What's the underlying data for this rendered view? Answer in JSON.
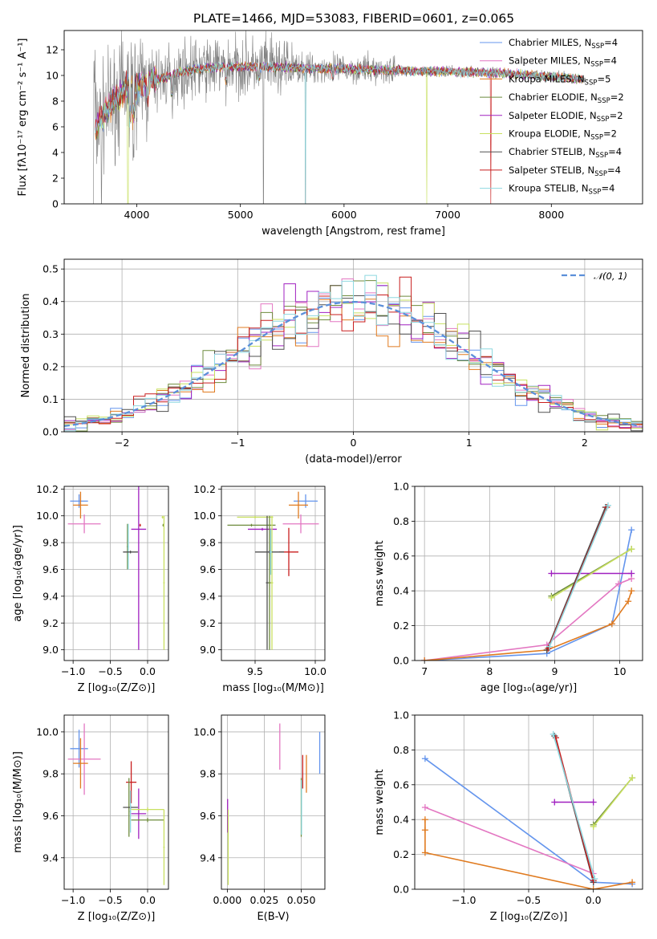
{
  "colors": {
    "chabrier_miles": "#6495ed",
    "salpeter_miles": "#e377c2",
    "kroupa_miles": "#e07b20",
    "chabrier_elodie": "#6e8b3d",
    "salpeter_elodie": "#a020c0",
    "kroupa_elodie": "#c8e060",
    "chabrier_stelib": "#505050",
    "salpeter_stelib": "#c81e1e",
    "kroupa_stelib": "#8ed8e0",
    "data": "#808080",
    "normal_curve": "#5b8fd9",
    "grid": "#b0b0b0"
  },
  "chart_data": [
    {
      "id": "spectrum",
      "type": "line",
      "title": "PLATE=1466, MJD=53083, FIBERID=0601, z=0.065",
      "xlabel": "wavelength [Angstrom, rest frame]",
      "ylabel": "Flux [fλ10⁻¹⁷ erg cm⁻² s⁻¹ A⁻¹]",
      "xlim": [
        3300,
        8880
      ],
      "ylim": [
        0,
        13.5
      ],
      "xticks": [
        4000,
        5000,
        6000,
        7000,
        8000
      ],
      "yticks": [
        0,
        2,
        4,
        6,
        8,
        10,
        12
      ],
      "grid": false,
      "legend_position": "top-right",
      "series": [
        {
          "name": "Chabrier MILES, N",
          "sub": "SSP",
          "n": "=4",
          "color": "chabrier_miles"
        },
        {
          "name": "Salpeter MILES, N",
          "sub": "SSP",
          "n": "=4",
          "color": "salpeter_miles"
        },
        {
          "name": "Kroupa MILES, N",
          "sub": "SSP",
          "n": "=5",
          "color": "kroupa_miles"
        },
        {
          "name": "Chabrier ELODIE, N",
          "sub": "SSP",
          "n": "=2",
          "color": "chabrier_elodie"
        },
        {
          "name": "Salpeter ELODIE, N",
          "sub": "SSP",
          "n": "=2",
          "color": "salpeter_elodie"
        },
        {
          "name": "Kroupa ELODIE, N",
          "sub": "SSP",
          "n": "=2",
          "color": "kroupa_elodie"
        },
        {
          "name": "Chabrier STELIB, N",
          "sub": "SSP",
          "n": "=4",
          "color": "chabrier_stelib"
        },
        {
          "name": "Salpeter STELIB, N",
          "sub": "SSP",
          "n": "=4",
          "color": "salpeter_stelib"
        },
        {
          "name": "Kroupa STELIB, N",
          "sub": "SSP",
          "n": "=4",
          "color": "kroupa_stelib"
        }
      ],
      "continuum": [
        [
          3600,
          5.8
        ],
        [
          3700,
          7.2
        ],
        [
          3800,
          8.2
        ],
        [
          3900,
          9.0
        ],
        [
          4000,
          9.1
        ],
        [
          4100,
          9.6
        ],
        [
          4200,
          9.7
        ],
        [
          4300,
          9.9
        ],
        [
          4400,
          10.2
        ],
        [
          4500,
          10.4
        ],
        [
          4700,
          10.6
        ],
        [
          5000,
          10.7
        ],
        [
          5500,
          10.6
        ],
        [
          6000,
          10.5
        ],
        [
          6500,
          10.4
        ],
        [
          7000,
          10.3
        ],
        [
          7500,
          10.2
        ],
        [
          8000,
          9.9
        ],
        [
          8300,
          9.7
        ]
      ]
    },
    {
      "id": "residuals",
      "type": "histogram",
      "xlabel": "(data-model)/error",
      "ylabel": "Normed distribution",
      "xlim": [
        -2.5,
        2.5
      ],
      "ylim": [
        0,
        0.53
      ],
      "xticks": [
        -2,
        -1,
        0,
        1,
        2
      ],
      "yticks": [
        0.0,
        0.1,
        0.2,
        0.3,
        0.4,
        0.5
      ],
      "grid": true,
      "legend_position": "top-right",
      "legend": "𝒩(0, 1)",
      "bin_width": 0.1
    },
    {
      "id": "age_vs_Z",
      "type": "errorbar",
      "xlabel": "Z [log₁₀(Z/Z⊙)]",
      "ylabel": "age  [log₁₀(age/yr)]",
      "xlim": [
        -1.12,
        0.28
      ],
      "ylim": [
        8.92,
        10.22
      ],
      "xticks": [
        -1.0,
        -0.5,
        0.0
      ],
      "yticks": [
        9.0,
        9.2,
        9.4,
        9.6,
        9.8,
        10.0,
        10.2
      ],
      "grid": true,
      "points": [
        {
          "s": "chabrier_miles",
          "x": -0.92,
          "xe": 0.12,
          "y": 10.11,
          "ye": 0.05
        },
        {
          "s": "kroupa_miles",
          "x": -0.9,
          "xe": 0.1,
          "y": 10.08,
          "ye": 0.1
        },
        {
          "s": "salpeter_miles",
          "x": -0.85,
          "xe": 0.22,
          "y": 9.94,
          "ye": 0.07
        },
        {
          "s": "chabrier_elodie",
          "x": -0.27,
          "xe": 0.01,
          "y": 9.77,
          "ye": 0.17
        },
        {
          "s": "kroupa_stelib",
          "x": -0.26,
          "xe": 0.01,
          "y": 9.77,
          "ye": 0.17
        },
        {
          "s": "chabrier_stelib",
          "x": -0.23,
          "xe": 0.1,
          "y": 9.73,
          "ye": 0.01
        },
        {
          "s": "salpeter_elodie",
          "x": -0.12,
          "xe": 0.1,
          "y": 9.9,
          "ye": 0.9
        },
        {
          "s": "salpeter_stelib",
          "x": -0.1,
          "xe": 0.01,
          "y": 9.93,
          "ye": 0.01
        },
        {
          "s": "kroupa_elodie",
          "x": 0.2,
          "xe": 0.01,
          "y": 9.99,
          "ye": 0.01
        },
        {
          "s": "chabrier_elodie",
          "x": 0.21,
          "xe": 0.01,
          "y": 9.93,
          "ye": 0.01
        },
        {
          "s": "kroupa_elodie",
          "x": 0.22,
          "xe": 0.01,
          "y": 9.5,
          "ye": 0.5
        }
      ]
    },
    {
      "id": "age_vs_mass",
      "type": "errorbar",
      "xlabel": "mass [log₁₀(M/M⊙)]",
      "xlim": [
        9.22,
        10.08
      ],
      "ylim": [
        8.92,
        10.22
      ],
      "xticks": [
        9.5,
        10.0
      ],
      "yticks": [
        9.0,
        9.2,
        9.4,
        9.6,
        9.8,
        10.0,
        10.2
      ],
      "grid": true,
      "points": [
        {
          "s": "chabrier_miles",
          "x": 9.92,
          "xe": 0.1,
          "y": 10.11,
          "ye": 0.05
        },
        {
          "s": "kroupa_miles",
          "x": 9.86,
          "xe": 0.08,
          "y": 10.08,
          "ye": 0.1
        },
        {
          "s": "salpeter_miles",
          "x": 9.88,
          "xe": 0.15,
          "y": 9.94,
          "ye": 0.07
        },
        {
          "s": "kroupa_elodie",
          "x": 9.5,
          "xe": 0.15,
          "y": 9.99,
          "ye": 0.01
        },
        {
          "s": "chabrier_elodie",
          "x": 9.47,
          "xe": 0.2,
          "y": 9.93,
          "ye": 0.01
        },
        {
          "s": "salpeter_elodie",
          "x": 9.56,
          "xe": 0.12,
          "y": 9.9,
          "ye": 0.01
        },
        {
          "s": "salpeter_stelib",
          "x": 9.78,
          "xe": 0.08,
          "y": 9.73,
          "ye": 0.18
        },
        {
          "s": "chabrier_stelib",
          "x": 9.6,
          "xe": 0.01,
          "y": 9.5,
          "ye": 0.5
        },
        {
          "s": "chabrier_elodie",
          "x": 9.62,
          "xe": 0.01,
          "y": 9.5,
          "ye": 0.5
        },
        {
          "s": "kroupa_elodie",
          "x": 9.64,
          "xe": 0.01,
          "y": 9.5,
          "ye": 0.5
        },
        {
          "s": "chabrier_stelib",
          "x": 9.62,
          "xe": 0.12,
          "y": 9.73,
          "ye": 0.01
        },
        {
          "s": "kroupa_stelib",
          "x": 9.63,
          "xe": 0.01,
          "y": 9.73,
          "ye": 0.17
        }
      ]
    },
    {
      "id": "weight_vs_age",
      "type": "line",
      "xlabel": "age  [log₁₀(age/yr)]",
      "ylabel": "mass weight",
      "xlim": [
        6.85,
        10.35
      ],
      "ylim": [
        0,
        1.0
      ],
      "xticks": [
        7,
        8,
        9,
        10
      ],
      "yticks": [
        0.0,
        0.2,
        0.4,
        0.6,
        0.8,
        1.0
      ],
      "grid": true,
      "lines": [
        {
          "s": "chabrier_miles",
          "pts": [
            [
              7.0,
              0.0
            ],
            [
              8.88,
              0.04
            ],
            [
              9.88,
              0.21
            ],
            [
              10.18,
              0.75
            ]
          ]
        },
        {
          "s": "salpeter_miles",
          "pts": [
            [
              7.0,
              0.0
            ],
            [
              8.88,
              0.09
            ],
            [
              9.98,
              0.44
            ],
            [
              10.18,
              0.47
            ]
          ]
        },
        {
          "s": "kroupa_miles",
          "pts": [
            [
              7.0,
              0.0
            ],
            [
              8.88,
              0.06
            ],
            [
              9.88,
              0.21
            ],
            [
              10.13,
              0.34
            ],
            [
              10.18,
              0.4
            ]
          ]
        },
        {
          "s": "chabrier_elodie",
          "pts": [
            [
              8.95,
              0.37
            ],
            [
              10.18,
              0.64
            ]
          ]
        },
        {
          "s": "salpeter_elodie",
          "pts": [
            [
              8.95,
              0.5
            ],
            [
              10.18,
              0.5
            ]
          ]
        },
        {
          "s": "kroupa_elodie",
          "pts": [
            [
              8.95,
              0.36
            ],
            [
              10.18,
              0.64
            ]
          ]
        },
        {
          "s": "chabrier_stelib",
          "pts": [
            [
              8.88,
              0.06
            ],
            [
              9.78,
              0.88
            ]
          ]
        },
        {
          "s": "salpeter_stelib",
          "pts": [
            [
              8.9,
              0.07
            ],
            [
              9.8,
              0.88
            ]
          ]
        },
        {
          "s": "kroupa_stelib",
          "pts": [
            [
              8.92,
              0.08
            ],
            [
              9.82,
              0.89
            ]
          ]
        }
      ]
    },
    {
      "id": "mass_vs_Z",
      "type": "errorbar",
      "xlabel": "Z [log₁₀(Z/Z⊙)]",
      "ylabel": "mass [log₁₀(M/M⊙)]",
      "xlim": [
        -1.12,
        0.28
      ],
      "ylim": [
        9.25,
        10.08
      ],
      "xticks": [
        -1.0,
        -0.5,
        0.0
      ],
      "yticks": [
        9.4,
        9.6,
        9.8,
        10.0
      ],
      "grid": true,
      "points": [
        {
          "s": "chabrier_miles",
          "x": -0.92,
          "xe": 0.12,
          "y": 9.92,
          "ye": 0.09
        },
        {
          "s": "salpeter_miles",
          "x": -0.85,
          "xe": 0.22,
          "y": 9.87,
          "ye": 0.17
        },
        {
          "s": "kroupa_miles",
          "x": -0.9,
          "xe": 0.1,
          "y": 9.85,
          "ye": 0.12
        },
        {
          "s": "salpeter_stelib",
          "x": -0.22,
          "xe": 0.07,
          "y": 9.76,
          "ye": 0.1
        },
        {
          "s": "chabrier_elodie",
          "x": -0.25,
          "xe": 0.01,
          "y": 9.64,
          "ye": 0.14
        },
        {
          "s": "chabrier_stelib",
          "x": -0.23,
          "xe": 0.1,
          "y": 9.64,
          "ye": 0.01
        },
        {
          "s": "kroupa_stelib",
          "x": -0.23,
          "xe": 0.01,
          "y": 9.62,
          "ye": 0.1
        },
        {
          "s": "salpeter_elodie",
          "x": -0.12,
          "xe": 0.1,
          "y": 9.61,
          "ye": 0.12
        },
        {
          "s": "chabrier_elodie",
          "x": 0.0,
          "xe": 0.22,
          "y": 9.58,
          "ye": 0.01
        },
        {
          "s": "kroupa_elodie",
          "x": 0.22,
          "xe": 0.01,
          "y": 9.45,
          "ye": 0.18
        },
        {
          "s": "kroupa_elodie",
          "x": 0.0,
          "xe": 0.22,
          "y": 9.63,
          "ye": 0.01
        }
      ]
    },
    {
      "id": "mass_vs_ebv",
      "type": "errorbar",
      "xlabel": "E(B-V)",
      "xlim": [
        -0.004,
        0.066
      ],
      "ylim": [
        9.25,
        10.08
      ],
      "xticks": [
        0.0,
        0.025,
        0.05
      ],
      "xticklabels": [
        "0.000",
        "0.025",
        "0.050"
      ],
      "yticks": [
        9.4,
        9.6,
        9.8,
        10.0
      ],
      "grid": true,
      "points": [
        {
          "s": "chabrier_miles",
          "x": 0.0625,
          "xe": 0,
          "y": 9.9,
          "ye": 0.1
        },
        {
          "s": "salpeter_miles",
          "x": 0.0355,
          "xe": 0,
          "y": 9.93,
          "ye": 0.11
        },
        {
          "s": "kroupa_miles",
          "x": 0.0535,
          "xe": 0,
          "y": 9.8,
          "ye": 0.09
        },
        {
          "s": "salpeter_stelib",
          "x": 0.051,
          "xe": 0,
          "y": 9.81,
          "ye": 0.08
        },
        {
          "s": "chabrier_elodie",
          "x": 0.05,
          "xe": 0,
          "y": 9.64,
          "ye": 0.14
        },
        {
          "s": "kroupa_stelib",
          "x": 0.0502,
          "xe": 0,
          "y": 9.64,
          "ye": 0.13
        },
        {
          "s": "salpeter_elodie",
          "x": 0.0002,
          "xe": 0,
          "y": 9.6,
          "ye": 0.08
        },
        {
          "s": "kroupa_elodie",
          "x": 0.0006,
          "xe": 0,
          "y": 9.45,
          "ye": 0.18
        }
      ]
    },
    {
      "id": "weight_vs_Z",
      "type": "line",
      "xlabel": "Z [log₁₀(Z/Z⊙)]",
      "ylabel": "mass weight",
      "xlim": [
        -1.38,
        0.38
      ],
      "ylim": [
        0,
        1.0
      ],
      "xticks": [
        -1.0,
        -0.5,
        0.0
      ],
      "yticks": [
        0.0,
        0.2,
        0.4,
        0.6,
        0.8,
        1.0
      ],
      "grid": true,
      "lines": [
        {
          "s": "chabrier_miles",
          "pts": [
            [
              -1.3,
              0.75
            ],
            [
              0.0,
              0.04
            ],
            [
              0.3,
              0.03
            ]
          ]
        },
        {
          "s": "salpeter_miles",
          "pts": [
            [
              -1.3,
              0.47
            ],
            [
              0.0,
              0.09
            ]
          ]
        },
        {
          "s": "kroupa_miles",
          "pts": [
            [
              -1.3,
              0.4
            ],
            [
              -1.3,
              0.34
            ],
            [
              -1.3,
              0.21
            ],
            [
              0.0,
              0.0
            ],
            [
              0.3,
              0.04
            ]
          ]
        },
        {
          "s": "chabrier_elodie",
          "pts": [
            [
              0.0,
              0.37
            ],
            [
              0.3,
              0.64
            ]
          ]
        },
        {
          "s": "salpeter_elodie",
          "pts": [
            [
              -0.3,
              0.5
            ],
            [
              0.0,
              0.5
            ]
          ]
        },
        {
          "s": "kroupa_elodie",
          "pts": [
            [
              0.0,
              0.36
            ],
            [
              0.3,
              0.64
            ]
          ]
        },
        {
          "s": "chabrier_stelib",
          "pts": [
            [
              -0.3,
              0.88
            ],
            [
              0.0,
              0.04
            ]
          ]
        },
        {
          "s": "salpeter_stelib",
          "pts": [
            [
              -0.29,
              0.87
            ],
            [
              0.0,
              0.05
            ]
          ]
        },
        {
          "s": "kroupa_stelib",
          "pts": [
            [
              -0.31,
              0.89
            ],
            [
              0.01,
              0.06
            ]
          ]
        }
      ]
    }
  ]
}
